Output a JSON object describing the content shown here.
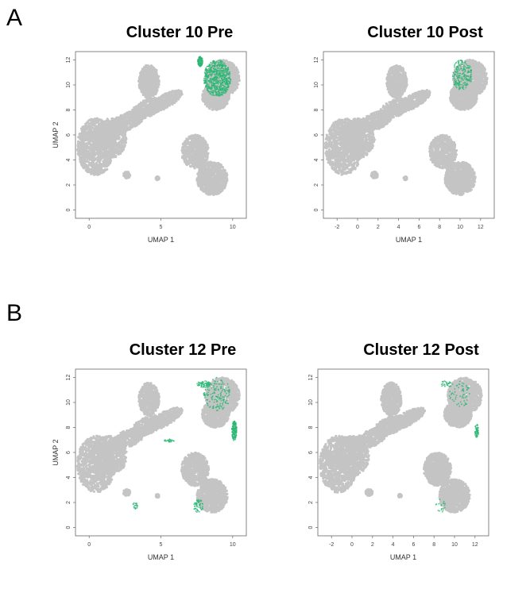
{
  "panels": [
    {
      "letter": "A",
      "plots": [
        {
          "title": "Cluster 10 Pre",
          "xlabel": "UMAP 1",
          "ylabel": "UMAP 2",
          "xticks": [
            "0",
            "5",
            "10"
          ],
          "yticks": [
            "0",
            "2",
            "4",
            "6",
            "8",
            "10",
            "12"
          ],
          "highlight": "cluster10pre"
        },
        {
          "title": "Cluster 10 Post",
          "xlabel": "UMAP 1",
          "ylabel": "",
          "xticks": [
            "-2",
            "0",
            "2",
            "4",
            "6",
            "8",
            "10",
            "12"
          ],
          "yticks": [
            "0",
            "2",
            "4",
            "6",
            "8",
            "10",
            "12"
          ],
          "highlight": "cluster10post"
        }
      ]
    },
    {
      "letter": "B",
      "plots": [
        {
          "title": "Cluster 12 Pre",
          "xlabel": "UMAP 1",
          "ylabel": "UMAP 2",
          "xticks": [
            "0",
            "5",
            "10"
          ],
          "yticks": [
            "0",
            "2",
            "4",
            "6",
            "8",
            "10",
            "12"
          ],
          "highlight": "cluster12pre"
        },
        {
          "title": "Cluster 12 Post",
          "xlabel": "UMAP 1",
          "ylabel": "",
          "xticks": [
            "-2",
            "0",
            "2",
            "4",
            "6",
            "8",
            "10",
            "12"
          ],
          "yticks": [
            "0",
            "2",
            "4",
            "6",
            "8",
            "10",
            "12"
          ],
          "highlight": "cluster12post"
        }
      ]
    }
  ],
  "colors": {
    "background_cells": "#c4c4c4",
    "highlight": "#2bb673",
    "axis": "#666666"
  },
  "chart_data": [
    {
      "type": "scatter",
      "title": "Cluster 10 Pre",
      "xlabel": "UMAP 1",
      "ylabel": "UMAP 2",
      "ylim": [
        0,
        12
      ],
      "highlight_region": "top-right cluster (UMAP1 ~9-12, UMAP2 ~7-12)"
    },
    {
      "type": "scatter",
      "title": "Cluster 10 Post",
      "xlabel": "UMAP 1",
      "ylabel": "",
      "xlim": [
        -2,
        12
      ],
      "ylim": [
        0,
        12
      ],
      "highlight_region": "top-right cluster, sparse"
    },
    {
      "type": "scatter",
      "title": "Cluster 12 Pre",
      "xlabel": "UMAP 1",
      "ylabel": "UMAP 2",
      "ylim": [
        0,
        12
      ],
      "highlight_region": "right edge of top-right cluster and bottom-right edges"
    },
    {
      "type": "scatter",
      "title": "Cluster 12 Post",
      "xlabel": "UMAP 1",
      "ylabel": "",
      "xlim": [
        -2,
        12
      ],
      "ylim": [
        0,
        12
      ],
      "highlight_region": "right edge of top-right cluster, sparse"
    }
  ]
}
